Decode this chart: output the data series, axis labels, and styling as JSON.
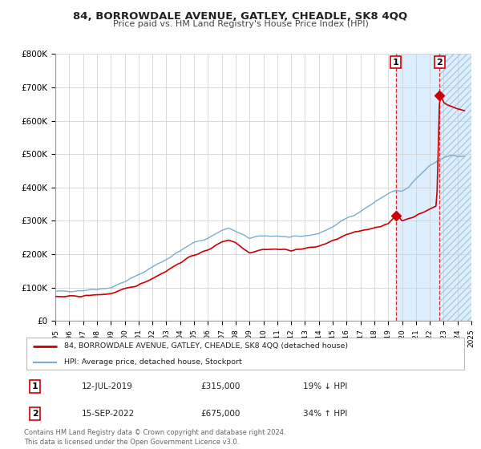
{
  "title": "84, BORROWDALE AVENUE, GATLEY, CHEADLE, SK8 4QQ",
  "subtitle": "Price paid vs. HM Land Registry's House Price Index (HPI)",
  "legend_line1": "84, BORROWDALE AVENUE, GATLEY, CHEADLE, SK8 4QQ (detached house)",
  "legend_line2": "HPI: Average price, detached house, Stockport",
  "annotation1_date": "12-JUL-2019",
  "annotation1_price": "£315,000",
  "annotation1_hpi": "19% ↓ HPI",
  "annotation2_date": "15-SEP-2022",
  "annotation2_price": "£675,000",
  "annotation2_hpi": "34% ↑ HPI",
  "footer1": "Contains HM Land Registry data © Crown copyright and database right 2024.",
  "footer2": "This data is licensed under the Open Government Licence v3.0.",
  "red_color": "#cc0000",
  "blue_color": "#7aadcf",
  "marker1_year": 2019.54,
  "marker2_year": 2022.71,
  "marker1_value": 315000,
  "marker2_value": 675000,
  "xlim_min": 1995,
  "xlim_max": 2025,
  "ylim_min": 0,
  "ylim_max": 800000,
  "shade1_start": 2019.54,
  "shade1_end": 2022.71,
  "shade2_start": 2022.71,
  "shade2_end": 2025
}
